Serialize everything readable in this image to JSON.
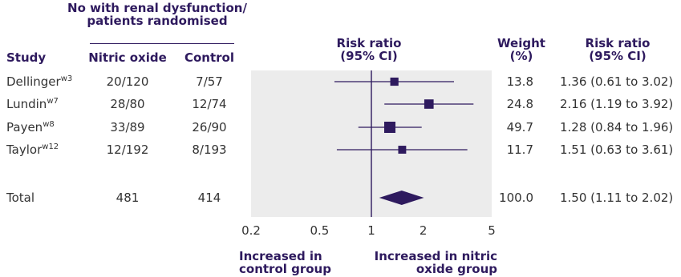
{
  "header": {
    "group_title_line1": "No with renal dysfunction/",
    "group_title_line2": "patients randomised",
    "study": "Study",
    "nitric_oxide": "Nitric oxide",
    "control": "Control",
    "risk_ratio_line1": "Risk ratio",
    "risk_ratio_line2": "(95% CI)",
    "weight_line1": "Weight",
    "weight_line2": "(%)",
    "rr_ci_line1": "Risk ratio",
    "rr_ci_line2": "(95% CI)"
  },
  "rows": [
    {
      "study": "Dellinger",
      "ref": "w3",
      "nitric_oxide": "20/120",
      "control": "7/57",
      "weight": "13.8",
      "rr_text": "1.36 (0.61 to 3.02)"
    },
    {
      "study": "Lundin",
      "ref": "w7",
      "nitric_oxide": "28/80",
      "control": "12/74",
      "weight": "24.8",
      "rr_text": "2.16 (1.19 to 3.92)"
    },
    {
      "study": "Payen",
      "ref": "w8",
      "nitric_oxide": "33/89",
      "control": "26/90",
      "weight": "49.7",
      "rr_text": "1.28 (0.84 to 1.96)"
    },
    {
      "study": "Taylor",
      "ref": "w12",
      "nitric_oxide": "12/192",
      "control": "8/193",
      "weight": "11.7",
      "rr_text": "1.51 (0.63 to 3.61)"
    }
  ],
  "total": {
    "label": "Total",
    "nitric_oxide": "481",
    "control": "414",
    "weight": "100.0",
    "rr_text": "1.50 (1.11 to 2.02)"
  },
  "footer": {
    "left_line1": "Increased in",
    "left_line2": "control group",
    "right_line1": "Increased in nitric",
    "right_line2": "oxide group"
  },
  "colors": {
    "accent": "#2e1a5e",
    "panel": "#ececec",
    "text": "#333333"
  },
  "chart_data": {
    "type": "forest",
    "scale": "log",
    "xlim": [
      0.2,
      5
    ],
    "reference_line": 1,
    "ticks": [
      {
        "value": 0.2,
        "label": "0.2"
      },
      {
        "value": 0.5,
        "label": "0.5"
      },
      {
        "value": 1,
        "label": "1"
      },
      {
        "value": 2,
        "label": "2"
      },
      {
        "value": 5,
        "label": "5"
      }
    ],
    "studies": [
      {
        "name": "Dellinger",
        "rr": 1.36,
        "lo": 0.61,
        "hi": 3.02,
        "weight": 13.8
      },
      {
        "name": "Lundin",
        "rr": 2.16,
        "lo": 1.19,
        "hi": 3.92,
        "weight": 24.8
      },
      {
        "name": "Payen",
        "rr": 1.28,
        "lo": 0.84,
        "hi": 1.96,
        "weight": 49.7
      },
      {
        "name": "Taylor",
        "rr": 1.51,
        "lo": 0.63,
        "hi": 3.61,
        "weight": 11.7
      }
    ],
    "pooled": {
      "name": "Total",
      "rr": 1.5,
      "lo": 1.11,
      "hi": 2.02,
      "weight": 100.0
    }
  }
}
